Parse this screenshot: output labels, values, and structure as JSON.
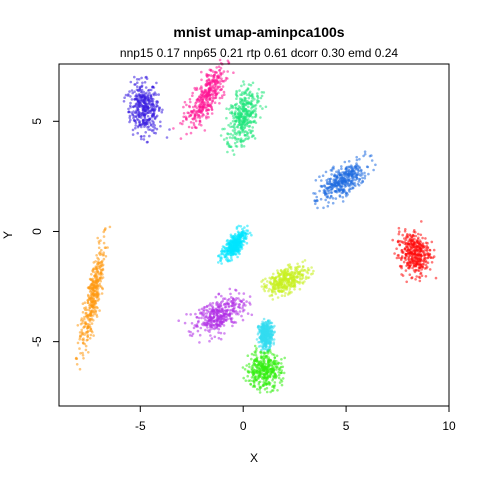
{
  "chart_data": {
    "type": "scatter",
    "title": "mnist umap-aminpca100s",
    "subtitle": "nnp15 0.17 nnp65 0.21 rtp 0.61 dcorr 0.30 emd 0.24",
    "xlabel": "X",
    "ylabel": "Y",
    "xlim": [
      -9,
      10
    ],
    "ylim": [
      -8,
      8
    ],
    "xticks": [
      -5,
      0,
      5,
      10
    ],
    "xtick_labels": [
      "-5",
      "0",
      "5",
      "10"
    ],
    "yticks": [
      -5,
      0,
      5
    ],
    "ytick_labels": [
      "-5",
      "0",
      "5"
    ],
    "grid": false,
    "legend": "none",
    "clusters": [
      {
        "color": "#3b1fe0",
        "center": [
          -4.8,
          5.6
        ],
        "extent": [
          0.9,
          1.4
        ],
        "angle": 10
      },
      {
        "color": "#ff1493",
        "center": [
          -1.8,
          6.1
        ],
        "extent": [
          0.7,
          1.9
        ],
        "angle": -30
      },
      {
        "color": "#1ee67a",
        "center": [
          0.0,
          5.2
        ],
        "extent": [
          0.8,
          1.6
        ],
        "angle": -20
      },
      {
        "color": "#1f6be0",
        "center": [
          4.8,
          2.3
        ],
        "extent": [
          0.7,
          1.6
        ],
        "angle": -55
      },
      {
        "color": "#00e5ff",
        "center": [
          -0.4,
          -0.6
        ],
        "extent": [
          0.4,
          1.0
        ],
        "angle": -40
      },
      {
        "color": "#ff0a0a",
        "center": [
          8.3,
          -1.0
        ],
        "extent": [
          0.9,
          1.2
        ],
        "angle": 10
      },
      {
        "color": "#c8f020",
        "center": [
          2.1,
          -2.2
        ],
        "extent": [
          0.6,
          1.3
        ],
        "angle": -70
      },
      {
        "color": "#ff9910",
        "center": [
          -7.3,
          -3.0
        ],
        "extent": [
          0.4,
          2.9
        ],
        "angle": -12
      },
      {
        "color": "#b030e6",
        "center": [
          -1.2,
          -3.8
        ],
        "extent": [
          0.8,
          1.6
        ],
        "angle": -60
      },
      {
        "color": "#33ddf0",
        "center": [
          1.1,
          -4.7
        ],
        "extent": [
          0.4,
          0.7
        ],
        "angle": 0
      },
      {
        "color": "#33ee10",
        "center": [
          1.0,
          -6.3
        ],
        "extent": [
          1.0,
          1.0
        ],
        "angle": 0
      }
    ]
  }
}
